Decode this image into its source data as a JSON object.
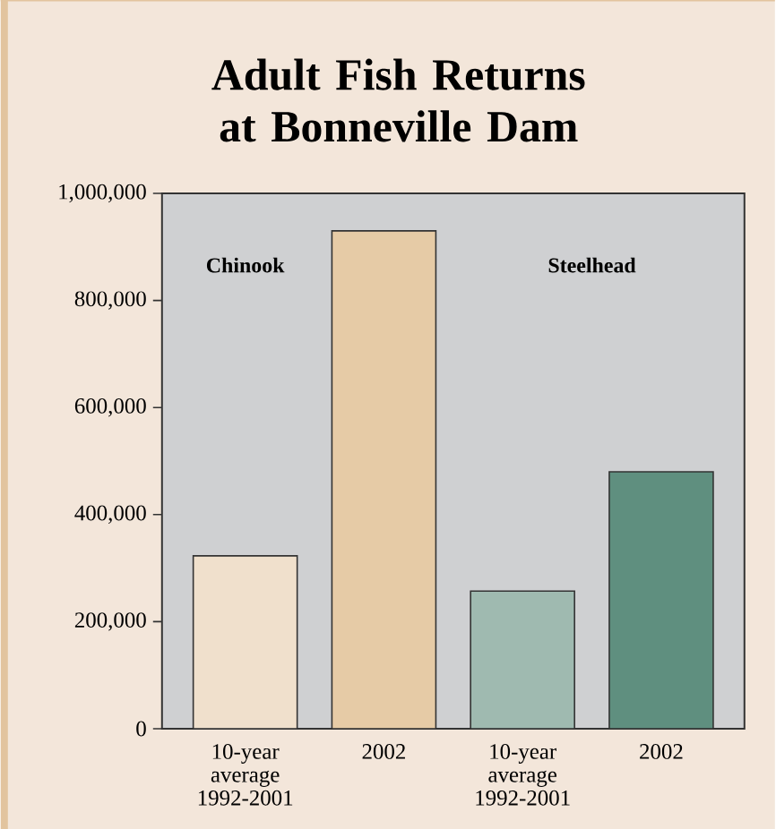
{
  "chart_data": {
    "type": "bar",
    "title": "Adult Fish Returns at Bonneville Dam",
    "categories": [
      "10-year average 1992-2001",
      "2002",
      "10-year average 1992-2001",
      "2002"
    ],
    "values": [
      323000,
      930000,
      257000,
      480000
    ],
    "colors": [
      "#f0e0cc",
      "#e6cba6",
      "#9fbab0",
      "#5f8f7f"
    ],
    "ylim": [
      0,
      1000000
    ],
    "yticks": [
      0,
      {
        "value": 200000,
        "label": "200,000"
      },
      {
        "value": 400000,
        "label": "400,000"
      },
      {
        "value": 600000,
        "label": "600,000"
      },
      {
        "value": 800000,
        "label": "800,000"
      },
      {
        "value": 1000000,
        "label": "1,000,000"
      }
    ],
    "annotations": [
      "Chinook",
      "Steelhead"
    ]
  }
}
